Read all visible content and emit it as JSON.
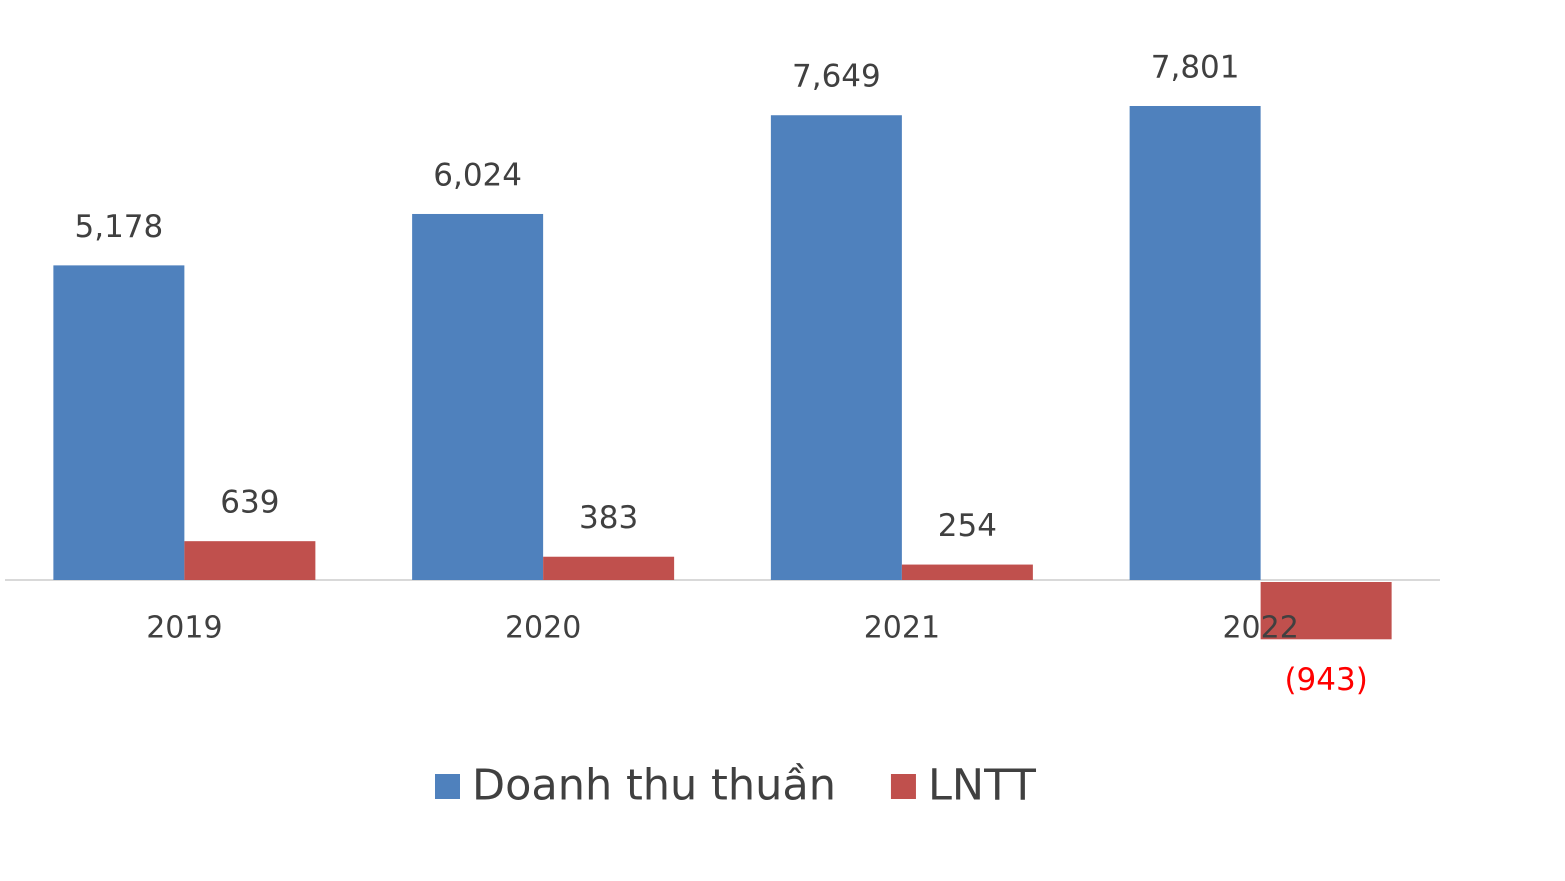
{
  "chart_data": {
    "type": "bar",
    "categories": [
      "2019",
      "2020",
      "2021",
      "2022"
    ],
    "series": [
      {
        "name": "Doanh thu thuần",
        "color": "#4f81bd",
        "values": [
          5178,
          6024,
          7649,
          7801
        ],
        "value_labels": [
          "5,178",
          "6,024",
          "7,649",
          "7,801"
        ]
      },
      {
        "name": "LNTT",
        "color": "#c0504d",
        "values": [
          639,
          383,
          254,
          -943
        ],
        "value_labels": [
          "639",
          "383",
          "254",
          "(943)"
        ],
        "negative_label_color": "#ff0000"
      }
    ],
    "legend": "bottom"
  }
}
